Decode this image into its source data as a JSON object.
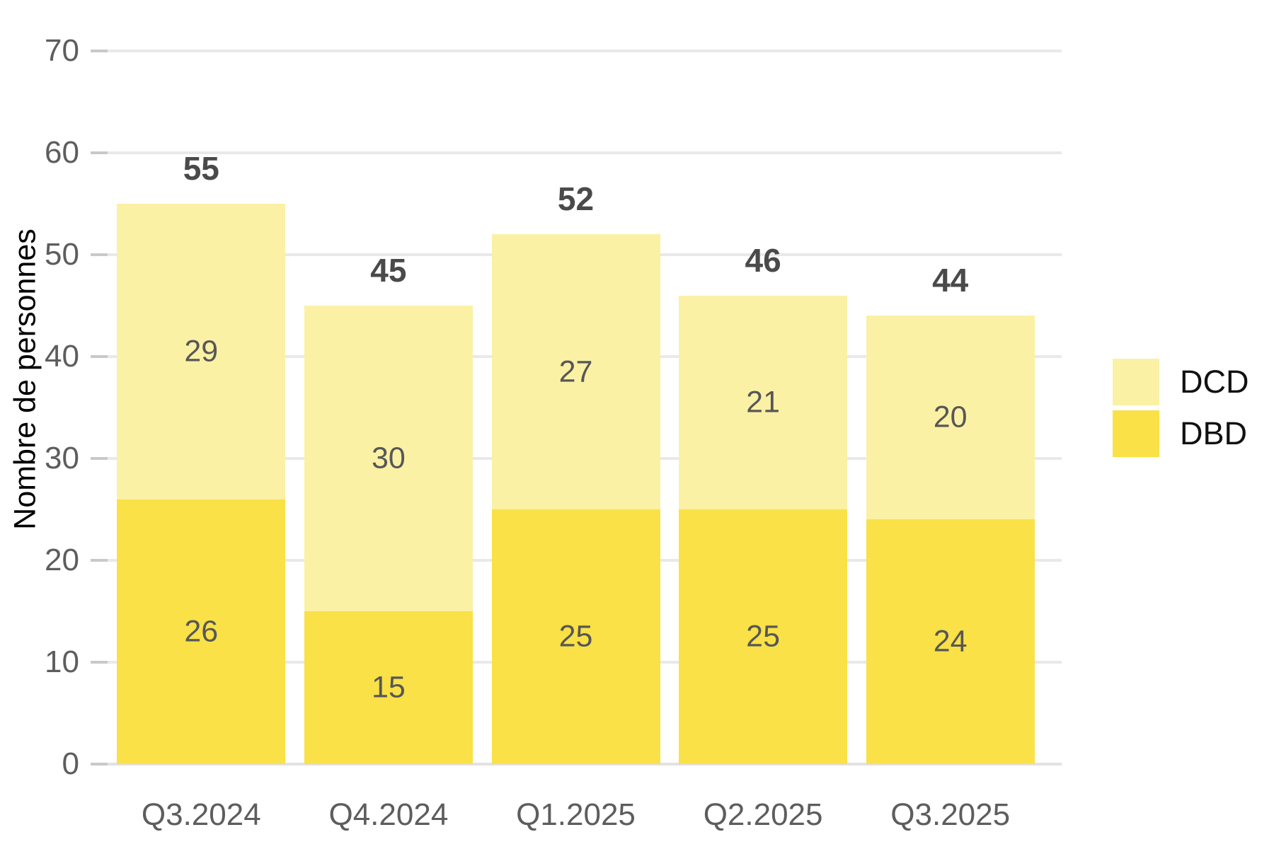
{
  "chart_data": {
    "type": "bar",
    "stacked": true,
    "title": "",
    "xlabel": "",
    "ylabel": "Nombre de personnes",
    "categories": [
      "Q3.2024",
      "Q4.2024",
      "Q1.2025",
      "Q2.2025",
      "Q3.2025"
    ],
    "series": [
      {
        "name": "DBD",
        "color": "#f9e147",
        "values": [
          26,
          15,
          25,
          25,
          24
        ]
      },
      {
        "name": "DCD",
        "color": "#fbf1a5",
        "values": [
          29,
          30,
          27,
          21,
          20
        ]
      }
    ],
    "totals": [
      55,
      45,
      52,
      46,
      44
    ],
    "ylim": [
      0,
      70
    ],
    "yticks": [
      0,
      10,
      20,
      30,
      40,
      50,
      60,
      70
    ],
    "grid": "horizontal",
    "legend_position": "right",
    "legend": [
      {
        "label": "DCD",
        "color": "#fbf1a5"
      },
      {
        "label": "DBD",
        "color": "#f9e147"
      }
    ]
  },
  "style_colors": {
    "gridline": "#e9e9e9",
    "axis_line": "#e2e2e2",
    "tick_mark": "#c9c9c9",
    "tick_text": "#5d5d5d",
    "segment_label_text": "#575757",
    "total_label_text": "#4a4a4a",
    "legend_text": "#111111",
    "axis_title_text": "#000000",
    "background": "#ffffff"
  }
}
